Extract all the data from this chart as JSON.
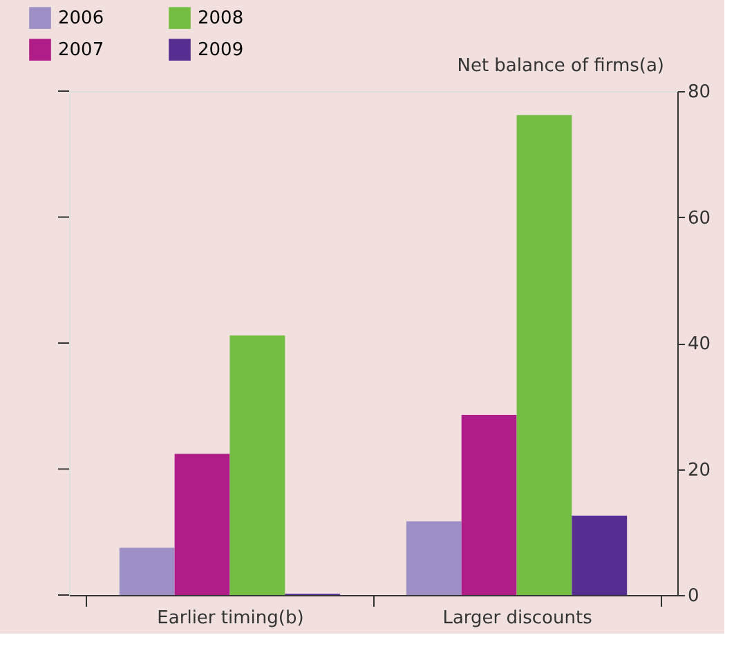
{
  "chart_data": {
    "type": "bar",
    "ylabel": "Net balance of firms(a)",
    "categories": [
      "Earlier timing(b)",
      "Larger discounts"
    ],
    "series": [
      {
        "name": "2006",
        "color": "#9e90c6",
        "values": [
          7.5,
          11.7
        ]
      },
      {
        "name": "2007",
        "color": "#b01c88",
        "values": [
          22.4,
          28.6
        ]
      },
      {
        "name": "2008",
        "color": "#74be43",
        "values": [
          41.2,
          76.2
        ]
      },
      {
        "name": "2009",
        "color": "#562d91",
        "values": [
          0.2,
          12.6
        ]
      }
    ],
    "ylim": [
      0,
      80
    ],
    "yticks": [
      0,
      20,
      40,
      60,
      80
    ],
    "grid": false,
    "legend": "top left"
  }
}
